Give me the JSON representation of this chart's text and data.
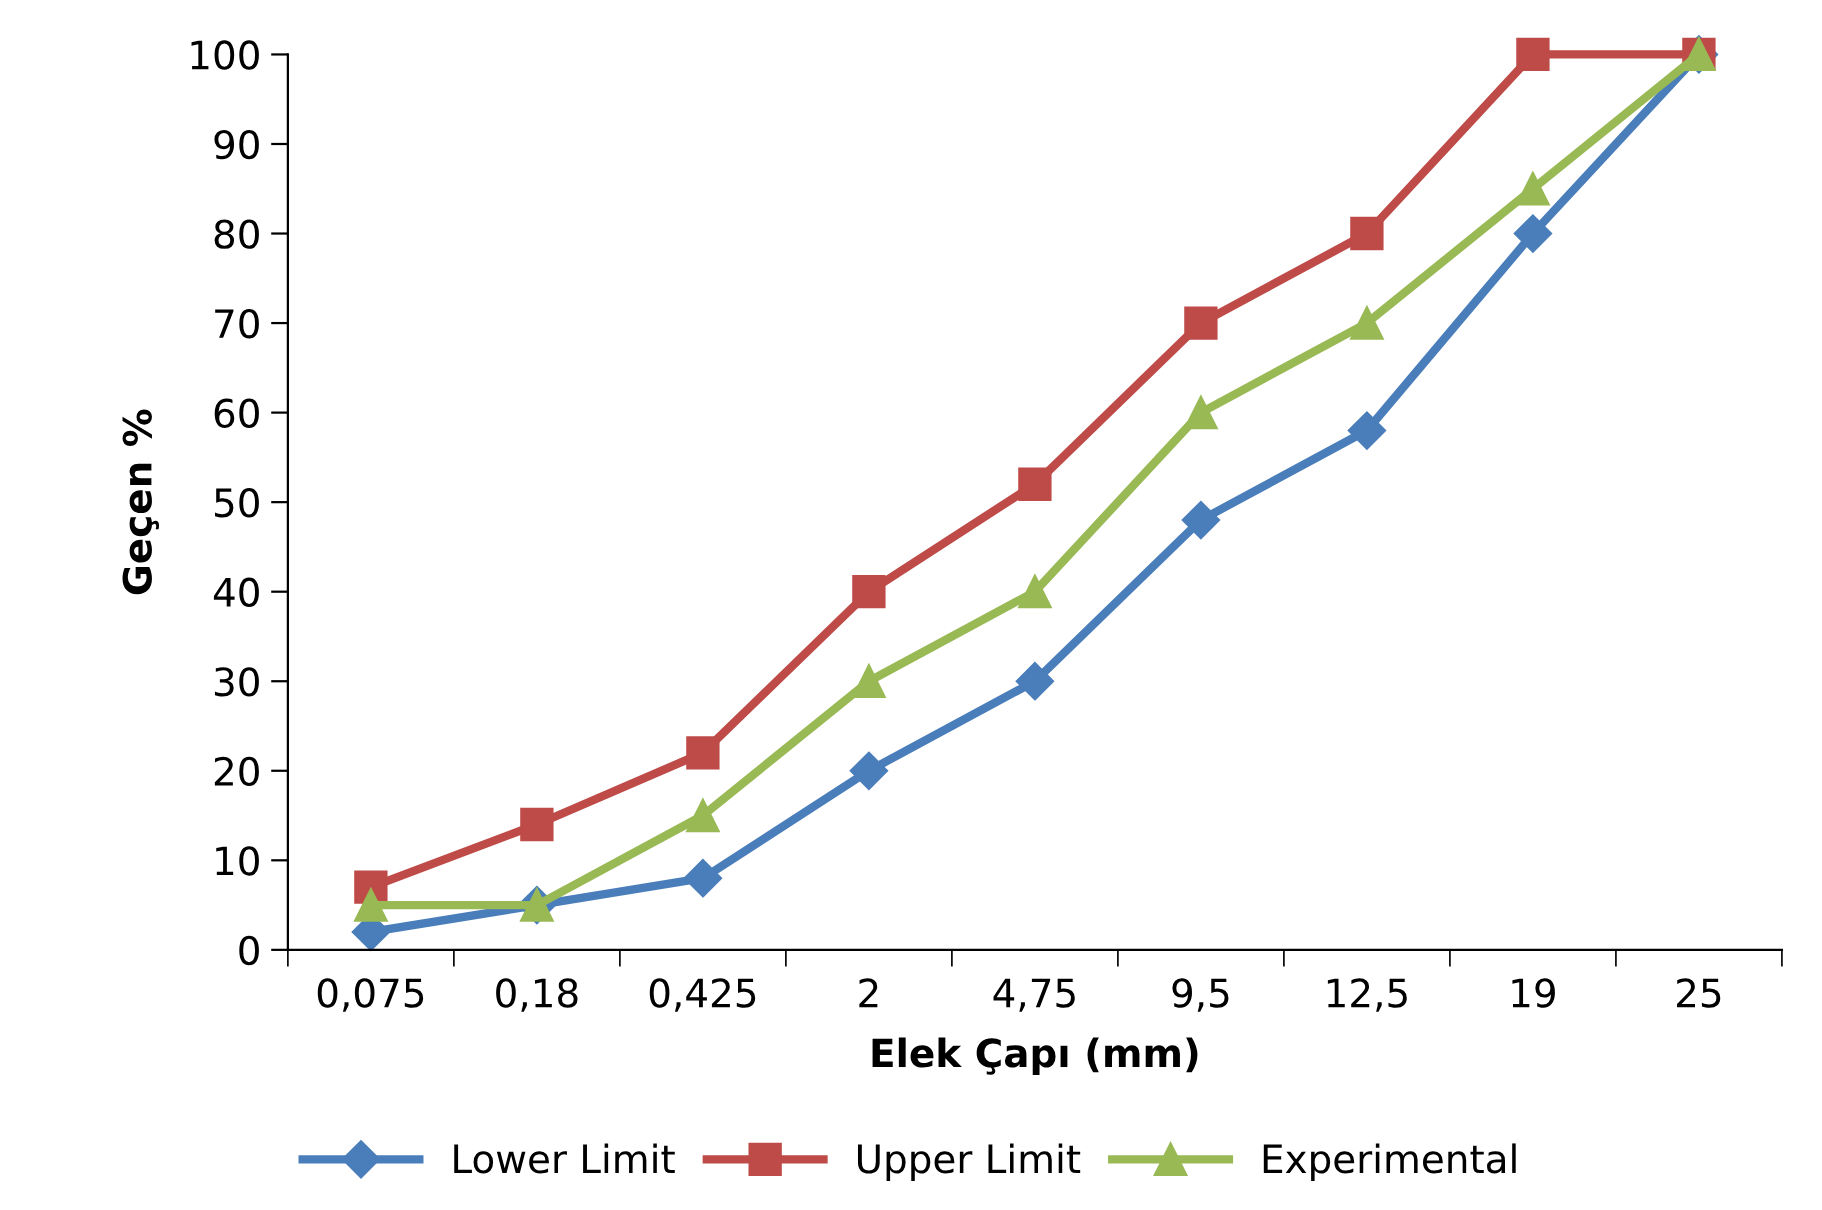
{
  "chart_data": {
    "type": "line",
    "xlabel": "Elek Çapı (mm)",
    "ylabel": "Geçen %",
    "categories": [
      "0,075",
      "0,18",
      "0,425",
      "2",
      "4,75",
      "9,5",
      "12,5",
      "19",
      "25"
    ],
    "series": [
      {
        "name": "Lower Limit",
        "color": "#4a7ebb",
        "marker": "diamond",
        "values": [
          2,
          5,
          8,
          20,
          30,
          48,
          58,
          80,
          100
        ]
      },
      {
        "name": "Upper Limit",
        "color": "#be4b48",
        "marker": "square",
        "values": [
          7,
          14,
          22,
          40,
          52,
          70,
          80,
          100,
          100
        ]
      },
      {
        "name": "Experimental",
        "color": "#98b954",
        "marker": "triangle",
        "values": [
          5,
          5,
          15,
          30,
          40,
          60,
          70,
          85,
          100
        ]
      }
    ],
    "ylim": [
      0,
      100
    ],
    "yticks": [
      0,
      10,
      20,
      30,
      40,
      50,
      60,
      70,
      80,
      90,
      100
    ],
    "grid": false,
    "legend": "bottom",
    "line_style": "solid"
  }
}
